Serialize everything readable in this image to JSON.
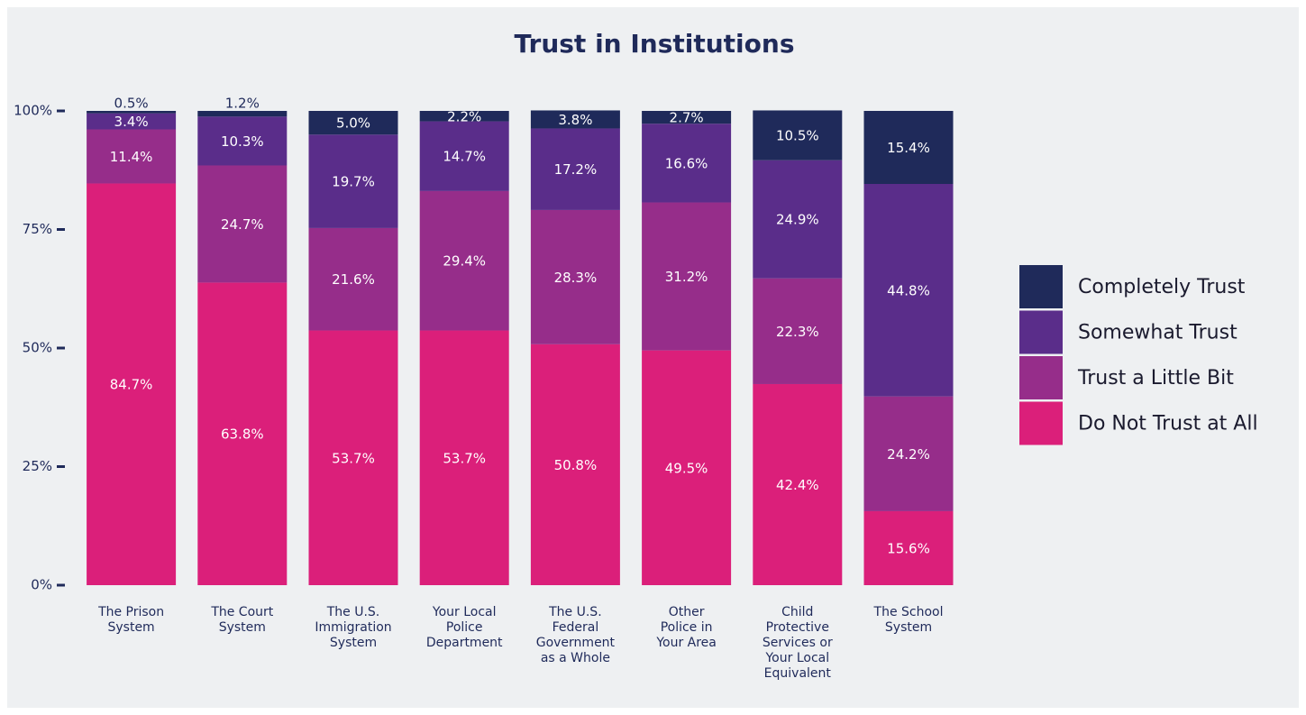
{
  "chart_data": {
    "type": "stacked_bar",
    "title": "Trust in Institutions",
    "categories": [
      "The Prison System",
      "The Court System",
      "The U.S. Immigration System",
      "Your Local Police Department",
      "The U.S. Federal Government as a Whole",
      "Other Police in Your Area",
      "Child Protective Services or Your Local Equivalent",
      "The School System"
    ],
    "series": [
      {
        "name": "Do Not Trust at All",
        "color": "#db1f7a",
        "values": [
          84.7,
          63.8,
          53.7,
          53.7,
          50.8,
          49.5,
          42.4,
          15.6
        ],
        "value_labels": [
          "84.7%",
          "63.8%",
          "53.7%",
          "53.7%",
          "50.8%",
          "49.5%",
          "42.4%",
          "15.6%"
        ]
      },
      {
        "name": "Trust a Little Bit",
        "color": "#962d8a",
        "values": [
          11.4,
          24.7,
          21.6,
          29.4,
          28.3,
          31.2,
          22.3,
          24.2
        ],
        "value_labels": [
          "11.4%",
          "24.7%",
          "21.6%",
          "29.4%",
          "28.3%",
          "31.2%",
          "22.3%",
          "24.2%"
        ]
      },
      {
        "name": "Somewhat Trust",
        "color": "#5a2d8a",
        "values": [
          3.4,
          10.3,
          19.7,
          14.7,
          17.2,
          16.6,
          24.9,
          44.8
        ],
        "value_labels": [
          "3.4%",
          "10.3%",
          "19.7%",
          "14.7%",
          "17.2%",
          "16.6%",
          "24.9%",
          "44.8%"
        ]
      },
      {
        "name": "Completely Trust",
        "color": "#1f2a5a",
        "values": [
          0.5,
          1.2,
          5,
          2.2,
          3.8,
          2.7,
          10.5,
          15.4
        ],
        "value_labels": [
          "0.5%",
          "1.2%",
          "5.0%",
          "2.2%",
          "3.8%",
          "2.7%",
          "10.5%",
          "15.4%"
        ]
      }
    ],
    "ylim": [
      0,
      100
    ],
    "yticks": [
      {
        "value": 0,
        "label": "0%"
      },
      {
        "value": 25,
        "label": "25%"
      },
      {
        "value": 50,
        "label": "50%"
      },
      {
        "value": 75,
        "label": "75%"
      },
      {
        "value": 100,
        "label": "100%"
      }
    ],
    "legend": "right"
  }
}
